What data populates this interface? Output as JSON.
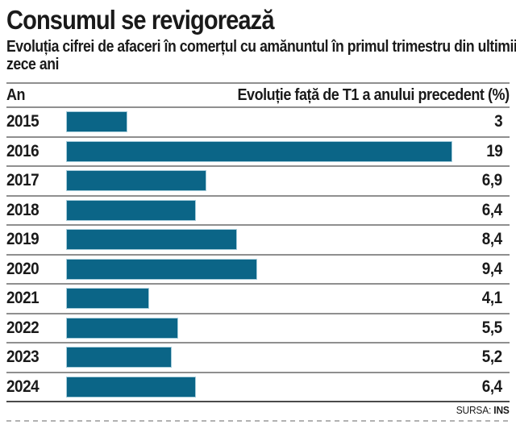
{
  "chart": {
    "title": "Consumul se revigorează",
    "subtitle": "Evoluția cifrei de afaceri în comerțul cu amănuntul în primul trimestru din ultimii zece ani",
    "subtitle_line1": "Evoluția cifrei de afaceri în comerțul cu amănuntul în primul trimestru din ultimii",
    "subtitle_line2": "zece ani",
    "column_year_label": "An",
    "column_value_label": "Evoluție față de T1 a anului precedent (%)",
    "source_label": "SURSA:",
    "source_value": "INS",
    "bar_color": "#0b6587",
    "bar_border_color": "#a7cddb"
  },
  "chart_data": {
    "type": "bar",
    "orientation": "horizontal",
    "title": "Consumul se revigorează",
    "subtitle": "Evoluția cifrei de afaceri în comerțul cu amănuntul în primul trimestru din ultimii zece ani",
    "xlabel": "Evoluție față de T1 a anului precedent (%)",
    "ylabel": "An",
    "categories": [
      "2015",
      "2016",
      "2017",
      "2018",
      "2019",
      "2020",
      "2021",
      "2022",
      "2023",
      "2024"
    ],
    "values": [
      3,
      19,
      6.9,
      6.4,
      8.4,
      9.4,
      4.1,
      5.5,
      5.2,
      6.4
    ],
    "value_labels": [
      "3",
      "19",
      "6,9",
      "6,4",
      "8,4",
      "9,4",
      "4,1",
      "5,5",
      "5,2",
      "6,4"
    ],
    "xlim": [
      0,
      19
    ],
    "grid": false,
    "legend": false,
    "source": "SURSA: INS"
  }
}
